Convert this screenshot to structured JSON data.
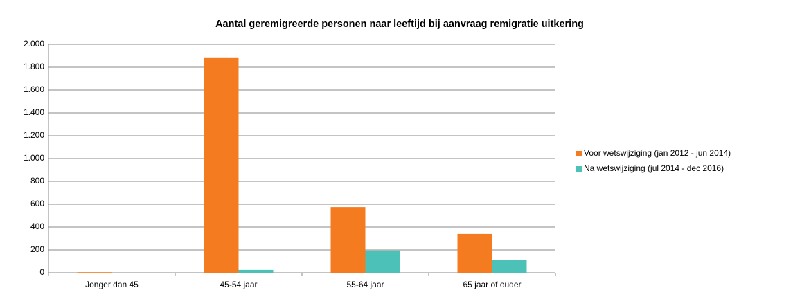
{
  "chart_data": {
    "type": "bar",
    "title": "Aantal geremigreerde personen naar leeftijd bij aanvraag  remigratie uitkering",
    "categories": [
      "Jonger dan 45",
      "45-54 jaar",
      "55-64 jaar",
      "65 jaar of ouder"
    ],
    "series": [
      {
        "name": "Voor wetswijziging (jan 2012 - jun 2014)",
        "color": "#f47b20",
        "values": [
          5,
          1880,
          575,
          340
        ]
      },
      {
        "name": "Na wetswijziging (jul 2014 - dec 2016)",
        "color": "#4bc1b8",
        "values": [
          0,
          25,
          195,
          115
        ]
      }
    ],
    "ylim": [
      0,
      2000
    ],
    "yticks": [
      0,
      200,
      400,
      600,
      800,
      {
        "value": 1000,
        "label": "1.000"
      },
      {
        "value": 1200,
        "label": "1.200"
      },
      {
        "value": 1400,
        "label": "1.400"
      },
      {
        "value": 1600,
        "label": "1.600"
      },
      {
        "value": 1800,
        "label": "1.800"
      },
      {
        "value": 2000,
        "label": "2.000"
      }
    ],
    "grid": true,
    "legend": "right"
  }
}
